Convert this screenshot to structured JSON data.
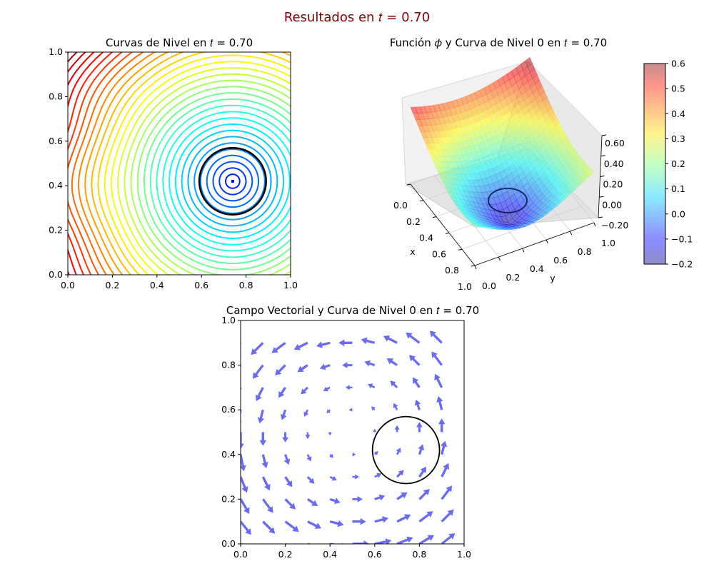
{
  "figure": {
    "suptitle": "Resultados en 𝑡 = 0.70"
  },
  "chart_data": [
    {
      "type": "contour",
      "title": "Curvas de Nivel en 𝑡 = 0.70",
      "xlim": [
        0,
        1
      ],
      "ylim": [
        0,
        1
      ],
      "xticks": [
        "0.0",
        "0.2",
        "0.4",
        "0.6",
        "0.8",
        "1.0"
      ],
      "yticks": [
        "0.0",
        "0.2",
        "0.4",
        "0.6",
        "0.8",
        "1.0"
      ],
      "colormap": "jet",
      "levels": {
        "min": -0.2,
        "max": 0.6,
        "count": 40
      },
      "field": {
        "center": [
          0.74,
          0.42
        ],
        "slope": 0.73,
        "min": -0.1
      },
      "zero_level": {
        "center": [
          0.74,
          0.42
        ],
        "radius": 0.15,
        "color": "#000000"
      }
    },
    {
      "type": "surface3d",
      "title": "Función 𝜙 y Curva de Nivel 0 en 𝑡 = 0.70",
      "xlabel": "x",
      "ylabel": "y",
      "xticks": [
        "0.0",
        "0.2",
        "0.4",
        "0.6",
        "0.8",
        "1.0"
      ],
      "yticks": [
        "0.0",
        "0.2",
        "0.4",
        "0.6",
        "0.8",
        "1.0"
      ],
      "zticks": [
        "0.60",
        "0.40",
        "0.20",
        "0.00",
        "−0.20"
      ],
      "zlim": [
        -0.2,
        0.6
      ],
      "colormap": "jet",
      "alpha": 0.5,
      "colorbar": {
        "ticks": [
          "0.6",
          "0.5",
          "0.4",
          "0.3",
          "0.2",
          "0.1",
          "0.0",
          "−0.1",
          "−0.2"
        ],
        "range": [
          -0.2,
          0.6
        ]
      },
      "zero_level": {
        "center": [
          0.74,
          0.42
        ],
        "radius": 0.15,
        "color": "#000000"
      }
    },
    {
      "type": "quiver",
      "title": "Campo Vectorial y Curva de Nivel 0 en 𝑡 = 0.70",
      "xlim": [
        0,
        1
      ],
      "ylim": [
        0,
        1
      ],
      "xticks": [
        "0.0",
        "0.2",
        "0.4",
        "0.6",
        "0.8",
        "1.0"
      ],
      "yticks": [
        "0.0",
        "0.2",
        "0.4",
        "0.6",
        "0.8",
        "1.0"
      ],
      "arrow_color": "#6a6af5",
      "grid": {
        "n": 10,
        "start": 0.0,
        "step": 0.1
      },
      "rotation": "counterclockwise",
      "vortex_center": [
        0.5,
        0.5
      ],
      "zero_level": {
        "center": [
          0.74,
          0.42
        ],
        "radius": 0.15,
        "color": "#000000"
      }
    }
  ]
}
